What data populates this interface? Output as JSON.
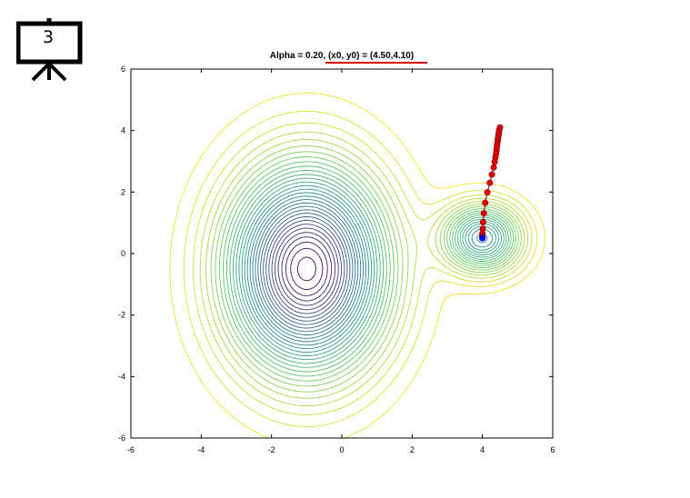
{
  "slide": {
    "number": "3",
    "icon": "presentation-board-icon"
  },
  "chart_data": {
    "type": "contour",
    "title": "Alpha = 0.20, (x0, y0) = (4.50,4.10)",
    "title_underline_color": "#e00000",
    "xlabel": "",
    "ylabel": "",
    "xlim": [
      -6,
      6
    ],
    "ylim": [
      -6,
      6
    ],
    "xticks": [
      -6,
      -4,
      -2,
      0,
      2,
      4,
      6
    ],
    "yticks": [
      -6,
      -4,
      -2,
      0,
      2,
      4,
      6
    ],
    "xtick_labels": [
      "-6",
      "-4",
      "-2",
      "0",
      "2",
      "4",
      "6"
    ],
    "ytick_labels": [
      "-6",
      "-4",
      "-2",
      "0",
      "2",
      "4",
      "6"
    ],
    "grid": false,
    "colormap": "viridis",
    "minima": [
      {
        "x": -1.0,
        "y": -0.5
      },
      {
        "x": 4.0,
        "y": 0.5
      }
    ],
    "path": {
      "color": "#e00000",
      "points": [
        [
          4.5,
          4.1
        ],
        [
          4.48,
          4.02
        ],
        [
          4.47,
          3.95
        ],
        [
          4.46,
          3.88
        ],
        [
          4.45,
          3.8
        ],
        [
          4.44,
          3.72
        ],
        [
          4.43,
          3.64
        ],
        [
          4.42,
          3.55
        ],
        [
          4.41,
          3.46
        ],
        [
          4.4,
          3.36
        ],
        [
          4.39,
          3.25
        ],
        [
          4.37,
          3.13
        ],
        [
          4.35,
          2.98
        ],
        [
          4.32,
          2.8
        ],
        [
          4.27,
          2.57
        ],
        [
          4.21,
          2.3
        ],
        [
          4.14,
          1.99
        ],
        [
          4.08,
          1.65
        ],
        [
          4.04,
          1.31
        ],
        [
          4.02,
          1.02
        ],
        [
          4.01,
          0.8
        ],
        [
          4.0,
          0.66
        ],
        [
          4.0,
          0.58
        ],
        [
          4.0,
          0.54
        ]
      ]
    },
    "final_point": {
      "x": 4.0,
      "y": 0.5,
      "color": "#0000ff"
    }
  }
}
